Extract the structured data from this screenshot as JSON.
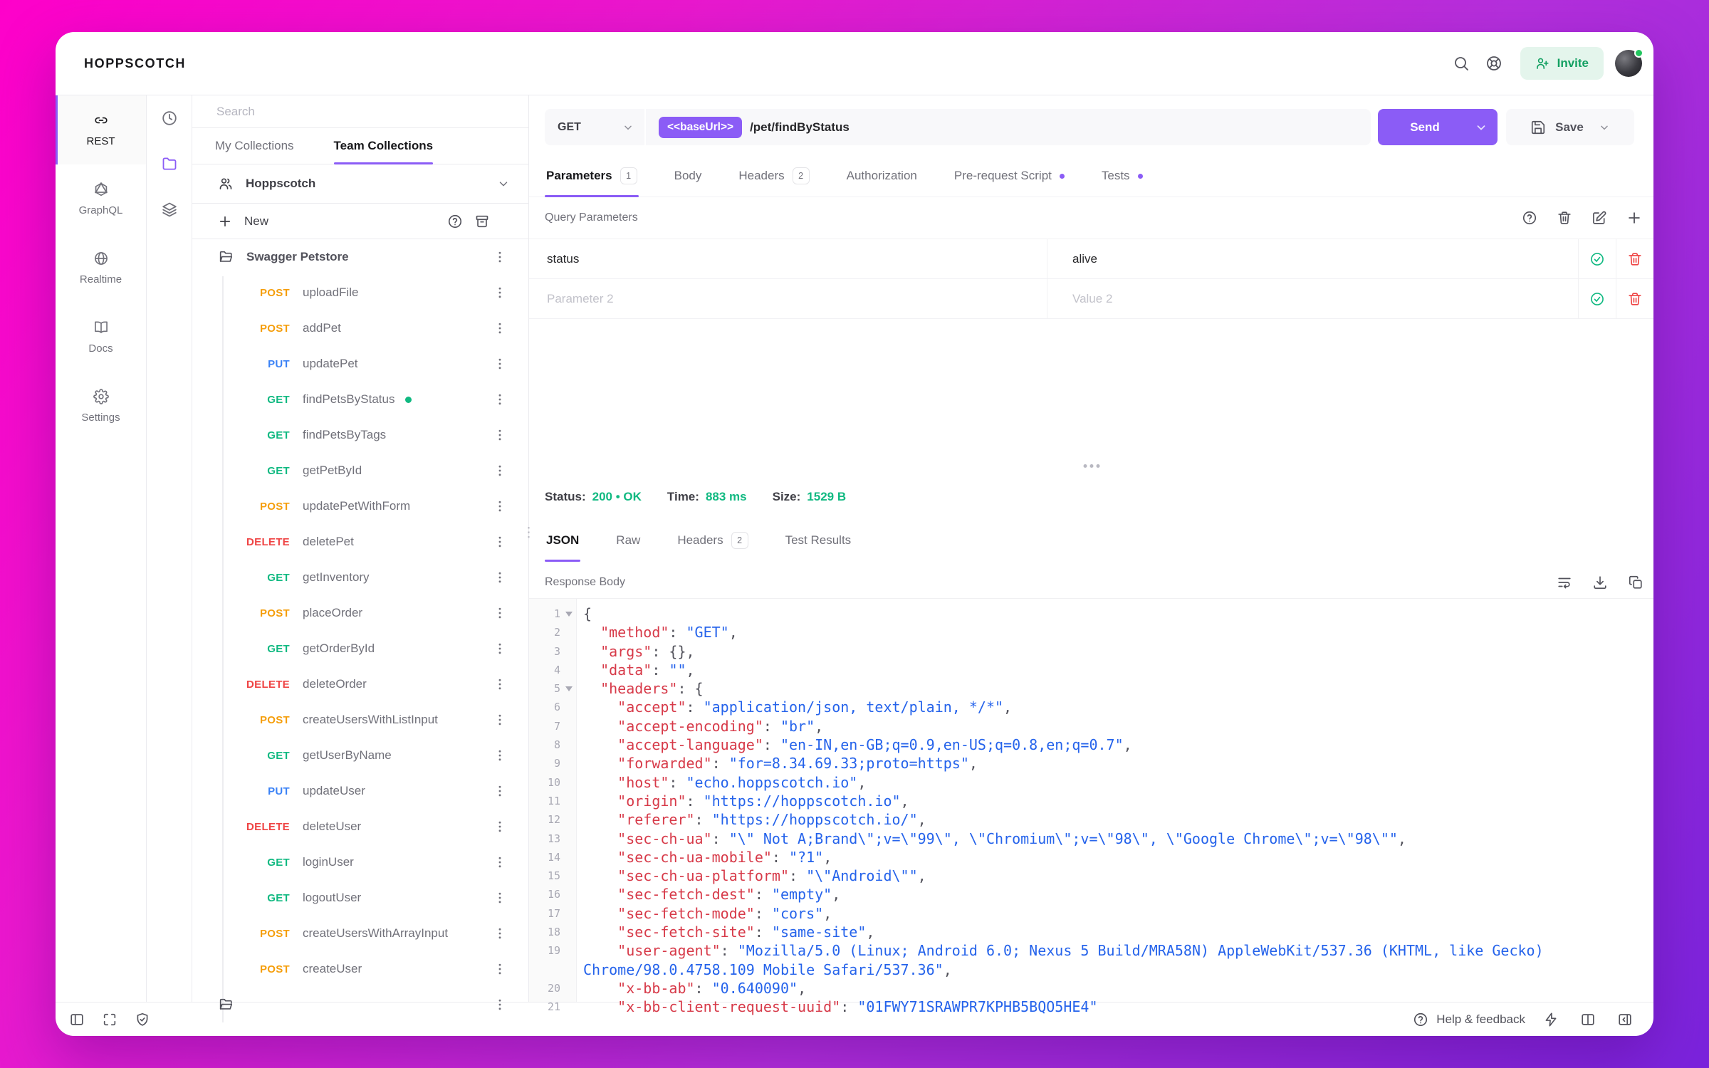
{
  "app": {
    "title": "HOPPSCOTCH"
  },
  "colors": {
    "accent": "#8b5cf6",
    "get": "#10b981",
    "post": "#f59e0b",
    "put": "#3b82f6",
    "delete": "#ef4444",
    "success_green": "#10b981",
    "invite_green": "#13a062",
    "json_key": "#d73a49",
    "json_value": "#2563eb"
  },
  "topbar": {
    "invite_label": "Invite"
  },
  "nav": {
    "items": [
      {
        "label": "REST",
        "icon": "link",
        "active": true
      },
      {
        "label": "GraphQL",
        "icon": "graphql",
        "active": false
      },
      {
        "label": "Realtime",
        "icon": "globe",
        "active": false
      },
      {
        "label": "Docs",
        "icon": "book",
        "active": false
      },
      {
        "label": "Settings",
        "icon": "gear",
        "active": false
      }
    ]
  },
  "panel_strip": {
    "items": [
      {
        "name": "history",
        "icon": "clock",
        "active": false
      },
      {
        "name": "collections",
        "icon": "folder",
        "active": true
      },
      {
        "name": "environments",
        "icon": "layers",
        "active": false
      }
    ]
  },
  "collections": {
    "search_placeholder": "Search",
    "tabs": [
      {
        "label": "My Collections",
        "active": false
      },
      {
        "label": "Team Collections",
        "active": true
      }
    ],
    "team_name": "Hoppscotch",
    "new_label": "New",
    "folder_name": "Swagger Petstore",
    "requests": [
      {
        "method": "POST",
        "name": "uploadFile",
        "active": false
      },
      {
        "method": "POST",
        "name": "addPet",
        "active": false
      },
      {
        "method": "PUT",
        "name": "updatePet",
        "active": false
      },
      {
        "method": "GET",
        "name": "findPetsByStatus",
        "active": true
      },
      {
        "method": "GET",
        "name": "findPetsByTags",
        "active": false
      },
      {
        "method": "GET",
        "name": "getPetById",
        "active": false
      },
      {
        "method": "POST",
        "name": "updatePetWithForm",
        "active": false
      },
      {
        "method": "DELETE",
        "name": "deletePet",
        "active": false
      },
      {
        "method": "GET",
        "name": "getInventory",
        "active": false
      },
      {
        "method": "POST",
        "name": "placeOrder",
        "active": false
      },
      {
        "method": "GET",
        "name": "getOrderById",
        "active": false
      },
      {
        "method": "DELETE",
        "name": "deleteOrder",
        "active": false
      },
      {
        "method": "POST",
        "name": "createUsersWithListInput",
        "active": false
      },
      {
        "method": "GET",
        "name": "getUserByName",
        "active": false
      },
      {
        "method": "PUT",
        "name": "updateUser",
        "active": false
      },
      {
        "method": "DELETE",
        "name": "deleteUser",
        "active": false
      },
      {
        "method": "GET",
        "name": "loginUser",
        "active": false
      },
      {
        "method": "GET",
        "name": "logoutUser",
        "active": false
      },
      {
        "method": "POST",
        "name": "createUsersWithArrayInput",
        "active": false
      },
      {
        "method": "POST",
        "name": "createUser",
        "active": false
      }
    ]
  },
  "request": {
    "method": "GET",
    "base_url_pill": "<<baseUrl>>",
    "path": "/pet/findByStatus",
    "send_label": "Send",
    "save_label": "Save",
    "tabs": [
      {
        "label": "Parameters",
        "badge": "1",
        "active": true
      },
      {
        "label": "Body",
        "active": false
      },
      {
        "label": "Headers",
        "badge": "2",
        "active": false
      },
      {
        "label": "Authorization",
        "active": false
      },
      {
        "label": "Pre-request Script",
        "dot": true,
        "active": false
      },
      {
        "label": "Tests",
        "dot": true,
        "active": false
      }
    ],
    "section_title": "Query Parameters",
    "params": [
      {
        "key": "status",
        "value": "alive",
        "filled": true
      },
      {
        "key": "Parameter 2",
        "value": "Value 2",
        "filled": false
      }
    ]
  },
  "response": {
    "status_label": "Status:",
    "status_value": "200 • OK",
    "time_label": "Time:",
    "time_value": "883 ms",
    "size_label": "Size:",
    "size_value": "1529 B",
    "tabs": [
      {
        "label": "JSON",
        "active": true
      },
      {
        "label": "Raw",
        "active": false
      },
      {
        "label": "Headers",
        "badge": "2",
        "active": false
      },
      {
        "label": "Test Results",
        "active": false
      }
    ],
    "body_label": "Response Body",
    "code_lines": [
      {
        "n": "1",
        "fold": true,
        "seg": [
          [
            "p",
            "{"
          ]
        ]
      },
      {
        "n": "2",
        "seg": [
          [
            "p",
            "  "
          ],
          [
            "k",
            "\"method\""
          ],
          [
            "p",
            ": "
          ],
          [
            "v",
            "\"GET\""
          ],
          [
            "p",
            ","
          ]
        ]
      },
      {
        "n": "3",
        "seg": [
          [
            "p",
            "  "
          ],
          [
            "k",
            "\"args\""
          ],
          [
            "p",
            ": {},"
          ]
        ]
      },
      {
        "n": "4",
        "seg": [
          [
            "p",
            "  "
          ],
          [
            "k",
            "\"data\""
          ],
          [
            "p",
            ": "
          ],
          [
            "v",
            "\"\""
          ],
          [
            "p",
            ","
          ]
        ]
      },
      {
        "n": "5",
        "fold": true,
        "seg": [
          [
            "p",
            "  "
          ],
          [
            "k",
            "\"headers\""
          ],
          [
            "p",
            ": {"
          ]
        ]
      },
      {
        "n": "6",
        "seg": [
          [
            "p",
            "    "
          ],
          [
            "k",
            "\"accept\""
          ],
          [
            "p",
            ": "
          ],
          [
            "v",
            "\"application/json, text/plain, */*\""
          ],
          [
            "p",
            ","
          ]
        ]
      },
      {
        "n": "7",
        "seg": [
          [
            "p",
            "    "
          ],
          [
            "k",
            "\"accept-encoding\""
          ],
          [
            "p",
            ": "
          ],
          [
            "v",
            "\"br\""
          ],
          [
            "p",
            ","
          ]
        ]
      },
      {
        "n": "8",
        "seg": [
          [
            "p",
            "    "
          ],
          [
            "k",
            "\"accept-language\""
          ],
          [
            "p",
            ": "
          ],
          [
            "v",
            "\"en-IN,en-GB;q=0.9,en-US;q=0.8,en;q=0.7\""
          ],
          [
            "p",
            ","
          ]
        ]
      },
      {
        "n": "9",
        "seg": [
          [
            "p",
            "    "
          ],
          [
            "k",
            "\"forwarded\""
          ],
          [
            "p",
            ": "
          ],
          [
            "v",
            "\"for=8.34.69.33;proto=https\""
          ],
          [
            "p",
            ","
          ]
        ]
      },
      {
        "n": "10",
        "seg": [
          [
            "p",
            "    "
          ],
          [
            "k",
            "\"host\""
          ],
          [
            "p",
            ": "
          ],
          [
            "v",
            "\"echo.hoppscotch.io\""
          ],
          [
            "p",
            ","
          ]
        ]
      },
      {
        "n": "11",
        "seg": [
          [
            "p",
            "    "
          ],
          [
            "k",
            "\"origin\""
          ],
          [
            "p",
            ": "
          ],
          [
            "v",
            "\"https://hoppscotch.io\""
          ],
          [
            "p",
            ","
          ]
        ]
      },
      {
        "n": "12",
        "seg": [
          [
            "p",
            "    "
          ],
          [
            "k",
            "\"referer\""
          ],
          [
            "p",
            ": "
          ],
          [
            "v",
            "\"https://hoppscotch.io/\""
          ],
          [
            "p",
            ","
          ]
        ]
      },
      {
        "n": "13",
        "seg": [
          [
            "p",
            "    "
          ],
          [
            "k",
            "\"sec-ch-ua\""
          ],
          [
            "p",
            ": "
          ],
          [
            "v",
            "\"\\\" Not A;Brand\\\";v=\\\"99\\\", \\\"Chromium\\\";v=\\\"98\\\", \\\"Google Chrome\\\";v=\\\"98\\\"\""
          ],
          [
            "p",
            ","
          ]
        ]
      },
      {
        "n": "14",
        "seg": [
          [
            "p",
            "    "
          ],
          [
            "k",
            "\"sec-ch-ua-mobile\""
          ],
          [
            "p",
            ": "
          ],
          [
            "v",
            "\"?1\""
          ],
          [
            "p",
            ","
          ]
        ]
      },
      {
        "n": "15",
        "seg": [
          [
            "p",
            "    "
          ],
          [
            "k",
            "\"sec-ch-ua-platform\""
          ],
          [
            "p",
            ": "
          ],
          [
            "v",
            "\"\\\"Android\\\"\""
          ],
          [
            "p",
            ","
          ]
        ]
      },
      {
        "n": "16",
        "seg": [
          [
            "p",
            "    "
          ],
          [
            "k",
            "\"sec-fetch-dest\""
          ],
          [
            "p",
            ": "
          ],
          [
            "v",
            "\"empty\""
          ],
          [
            "p",
            ","
          ]
        ]
      },
      {
        "n": "17",
        "seg": [
          [
            "p",
            "    "
          ],
          [
            "k",
            "\"sec-fetch-mode\""
          ],
          [
            "p",
            ": "
          ],
          [
            "v",
            "\"cors\""
          ],
          [
            "p",
            ","
          ]
        ]
      },
      {
        "n": "18",
        "seg": [
          [
            "p",
            "    "
          ],
          [
            "k",
            "\"sec-fetch-site\""
          ],
          [
            "p",
            ": "
          ],
          [
            "v",
            "\"same-site\""
          ],
          [
            "p",
            ","
          ]
        ]
      },
      {
        "n": "19",
        "seg": [
          [
            "p",
            "    "
          ],
          [
            "k",
            "\"user-agent\""
          ],
          [
            "p",
            ": "
          ],
          [
            "v",
            "\"Mozilla/5.0 (Linux; Android 6.0; Nexus 5 Build/MRA58N) AppleWebKit/537.36 (KHTML, like Gecko) Chrome/98.0.4758.109 Mobile Safari/537.36\""
          ],
          [
            "p",
            ","
          ]
        ]
      },
      {
        "n": "20",
        "seg": [
          [
            "p",
            "    "
          ],
          [
            "k",
            "\"x-bb-ab\""
          ],
          [
            "p",
            ": "
          ],
          [
            "v",
            "\"0.640090\""
          ],
          [
            "p",
            ","
          ]
        ]
      },
      {
        "n": "21",
        "seg": [
          [
            "p",
            "    "
          ],
          [
            "k",
            "\"x-bb-client-request-uuid\""
          ],
          [
            "p",
            ": "
          ],
          [
            "v",
            "\"01FWY71SRAWPR7KPHB5BQO5HE4\""
          ]
        ]
      }
    ]
  },
  "footer": {
    "help_label": "Help & feedback"
  }
}
